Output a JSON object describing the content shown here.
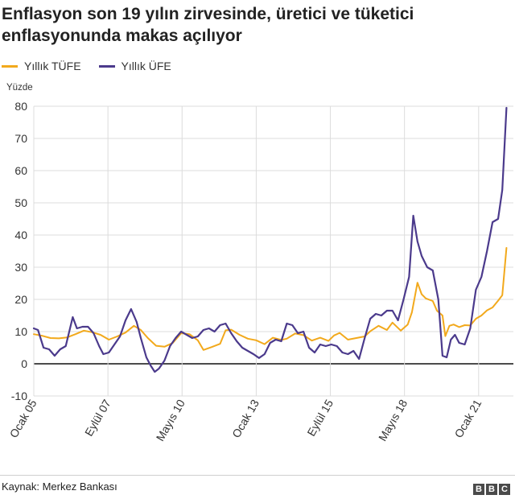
{
  "chart_data": {
    "type": "line",
    "title": "Enflasyon son 19 yılın zirvesinde, üretici ve tüketici enflasyonunda makas açılıyor",
    "ylabel": "Yüzde",
    "xlabel": "",
    "ylim": [
      -10,
      80
    ],
    "yticks": [
      -10,
      0,
      10,
      20,
      30,
      40,
      50,
      60,
      70,
      80
    ],
    "xlim": [
      2005.0,
      2022.25
    ],
    "xticks": [
      {
        "label": "Ocak 05",
        "t": 2005.0
      },
      {
        "label": "Eylül 07",
        "t": 2007.667
      },
      {
        "label": "Mayıs 10",
        "t": 2010.333
      },
      {
        "label": "Ocak 13",
        "t": 2013.0
      },
      {
        "label": "Eylül 15",
        "t": 2015.667
      },
      {
        "label": "Mayıs 18",
        "t": 2018.333
      },
      {
        "label": "Ocak 21",
        "t": 2021.0
      }
    ],
    "legend_position": "top-left",
    "grid": true,
    "series": [
      {
        "name": "Yıllık TÜFE",
        "color": "#f2a91c",
        "points": [
          [
            2005.0,
            9.2
          ],
          [
            2005.3,
            8.7
          ],
          [
            2005.6,
            8.0
          ],
          [
            2005.9,
            7.9
          ],
          [
            2006.2,
            8.2
          ],
          [
            2006.5,
            9.2
          ],
          [
            2006.8,
            10.3
          ],
          [
            2007.1,
            9.8
          ],
          [
            2007.4,
            9.0
          ],
          [
            2007.7,
            7.5
          ],
          [
            2008.0,
            8.5
          ],
          [
            2008.3,
            9.7
          ],
          [
            2008.6,
            11.8
          ],
          [
            2008.85,
            10.5
          ],
          [
            2009.1,
            8.0
          ],
          [
            2009.4,
            5.6
          ],
          [
            2009.7,
            5.3
          ],
          [
            2010.0,
            6.5
          ],
          [
            2010.3,
            9.5
          ],
          [
            2010.6,
            9.2
          ],
          [
            2010.9,
            7.3
          ],
          [
            2011.1,
            4.3
          ],
          [
            2011.4,
            5.2
          ],
          [
            2011.7,
            6.2
          ],
          [
            2011.9,
            10.4
          ],
          [
            2012.1,
            10.6
          ],
          [
            2012.4,
            9.0
          ],
          [
            2012.7,
            7.8
          ],
          [
            2013.0,
            7.3
          ],
          [
            2013.3,
            6.1
          ],
          [
            2013.6,
            8.1
          ],
          [
            2013.9,
            7.4
          ],
          [
            2014.1,
            7.8
          ],
          [
            2014.4,
            9.4
          ],
          [
            2014.7,
            8.9
          ],
          [
            2015.0,
            7.2
          ],
          [
            2015.3,
            8.1
          ],
          [
            2015.6,
            7.1
          ],
          [
            2015.8,
            8.8
          ],
          [
            2016.0,
            9.6
          ],
          [
            2016.3,
            7.5
          ],
          [
            2016.6,
            8.0
          ],
          [
            2016.9,
            8.5
          ],
          [
            2017.1,
            10.1
          ],
          [
            2017.4,
            11.8
          ],
          [
            2017.7,
            10.5
          ],
          [
            2017.9,
            12.8
          ],
          [
            2018.2,
            10.3
          ],
          [
            2018.45,
            12.2
          ],
          [
            2018.6,
            16.0
          ],
          [
            2018.8,
            25.2
          ],
          [
            2018.95,
            21.6
          ],
          [
            2019.1,
            20.3
          ],
          [
            2019.35,
            19.5
          ],
          [
            2019.5,
            16.5
          ],
          [
            2019.7,
            15.0
          ],
          [
            2019.8,
            8.6
          ],
          [
            2019.95,
            11.8
          ],
          [
            2020.1,
            12.2
          ],
          [
            2020.3,
            11.4
          ],
          [
            2020.5,
            12.0
          ],
          [
            2020.7,
            11.9
          ],
          [
            2020.9,
            14.0
          ],
          [
            2021.1,
            15.0
          ],
          [
            2021.3,
            16.6
          ],
          [
            2021.5,
            17.5
          ],
          [
            2021.7,
            19.6
          ],
          [
            2021.85,
            21.3
          ],
          [
            2022.0,
            36.0
          ]
        ]
      },
      {
        "name": "Yıllık ÜFE",
        "color": "#4b3a8c",
        "points": [
          [
            2005.0,
            11.0
          ],
          [
            2005.15,
            10.5
          ],
          [
            2005.35,
            5.0
          ],
          [
            2005.55,
            4.5
          ],
          [
            2005.75,
            2.5
          ],
          [
            2005.95,
            4.5
          ],
          [
            2006.15,
            5.5
          ],
          [
            2006.4,
            14.5
          ],
          [
            2006.55,
            11.0
          ],
          [
            2006.75,
            11.5
          ],
          [
            2006.95,
            11.5
          ],
          [
            2007.15,
            9.5
          ],
          [
            2007.35,
            5.5
          ],
          [
            2007.5,
            3.0
          ],
          [
            2007.7,
            3.5
          ],
          [
            2007.9,
            6.0
          ],
          [
            2008.1,
            8.5
          ],
          [
            2008.3,
            13.5
          ],
          [
            2008.5,
            17.0
          ],
          [
            2008.7,
            13.0
          ],
          [
            2008.85,
            8.0
          ],
          [
            2009.05,
            2.0
          ],
          [
            2009.2,
            -0.5
          ],
          [
            2009.35,
            -2.5
          ],
          [
            2009.5,
            -1.5
          ],
          [
            2009.7,
            1.0
          ],
          [
            2009.9,
            5.5
          ],
          [
            2010.1,
            8.0
          ],
          [
            2010.3,
            10.0
          ],
          [
            2010.5,
            9.0
          ],
          [
            2010.7,
            8.0
          ],
          [
            2010.9,
            8.5
          ],
          [
            2011.1,
            10.5
          ],
          [
            2011.3,
            11.0
          ],
          [
            2011.5,
            10.0
          ],
          [
            2011.7,
            12.0
          ],
          [
            2011.9,
            12.5
          ],
          [
            2012.1,
            9.5
          ],
          [
            2012.3,
            7.0
          ],
          [
            2012.5,
            5.0
          ],
          [
            2012.7,
            4.0
          ],
          [
            2012.9,
            3.0
          ],
          [
            2013.1,
            1.8
          ],
          [
            2013.3,
            3.0
          ],
          [
            2013.5,
            6.5
          ],
          [
            2013.7,
            7.5
          ],
          [
            2013.9,
            7.0
          ],
          [
            2014.1,
            12.5
          ],
          [
            2014.3,
            12.0
          ],
          [
            2014.5,
            9.5
          ],
          [
            2014.7,
            10.0
          ],
          [
            2014.9,
            5.0
          ],
          [
            2015.1,
            3.5
          ],
          [
            2015.3,
            6.0
          ],
          [
            2015.5,
            5.5
          ],
          [
            2015.7,
            6.0
          ],
          [
            2015.9,
            5.5
          ],
          [
            2016.1,
            3.5
          ],
          [
            2016.3,
            3.0
          ],
          [
            2016.5,
            4.0
          ],
          [
            2016.7,
            1.5
          ],
          [
            2016.9,
            8.0
          ],
          [
            2017.1,
            14.0
          ],
          [
            2017.3,
            15.5
          ],
          [
            2017.5,
            15.0
          ],
          [
            2017.7,
            16.5
          ],
          [
            2017.9,
            16.5
          ],
          [
            2018.1,
            13.5
          ],
          [
            2018.3,
            20.0
          ],
          [
            2018.5,
            27.0
          ],
          [
            2018.65,
            46.0
          ],
          [
            2018.8,
            38.0
          ],
          [
            2018.95,
            33.5
          ],
          [
            2019.15,
            30.0
          ],
          [
            2019.35,
            29.0
          ],
          [
            2019.55,
            20.0
          ],
          [
            2019.7,
            2.5
          ],
          [
            2019.85,
            2.0
          ],
          [
            2020.0,
            7.5
          ],
          [
            2020.15,
            9.0
          ],
          [
            2020.3,
            6.5
          ],
          [
            2020.5,
            6.0
          ],
          [
            2020.7,
            11.0
          ],
          [
            2020.9,
            23.0
          ],
          [
            2021.1,
            27.0
          ],
          [
            2021.3,
            35.0
          ],
          [
            2021.5,
            44.0
          ],
          [
            2021.7,
            45.0
          ],
          [
            2021.85,
            54.0
          ],
          [
            2022.0,
            79.5
          ]
        ]
      }
    ]
  },
  "source_label": "Kaynak: Merkez Bankası",
  "brand": [
    "B",
    "B",
    "C"
  ]
}
